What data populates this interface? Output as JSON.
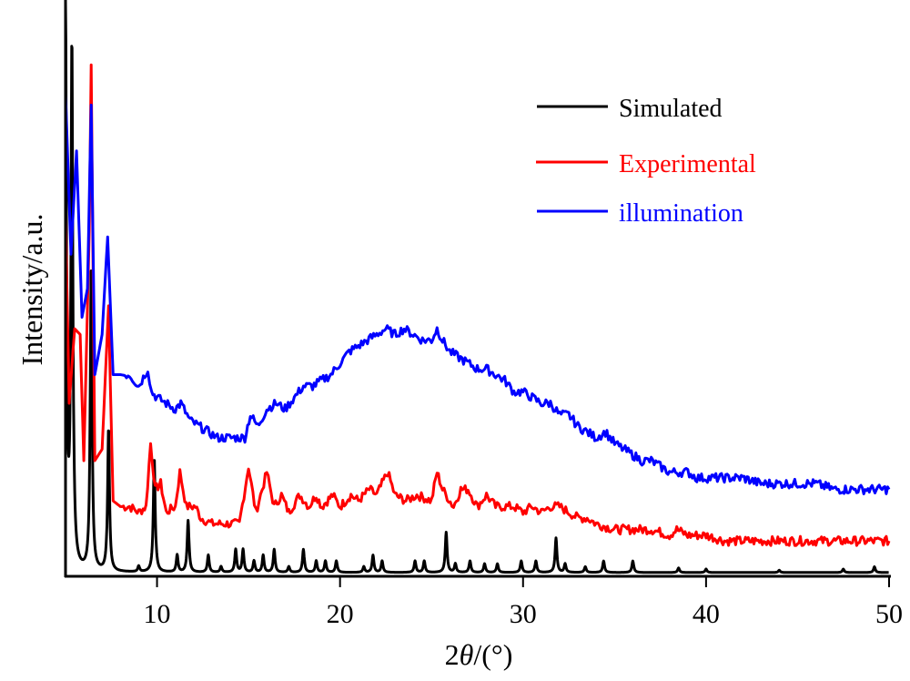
{
  "chart_data": {
    "type": "line",
    "title": "",
    "xlabel_prefix": "2",
    "xlabel_theta": "θ",
    "xlabel_suffix": "/(°)",
    "ylabel": "Intensity/a.u.",
    "xlim": [
      5,
      50
    ],
    "ylim": [
      0,
      100
    ],
    "xticks": [
      10,
      20,
      30,
      40,
      50
    ],
    "xtick_labels": [
      "10",
      "20",
      "30",
      "40",
      "50"
    ],
    "grid": false,
    "legend_position": "top-right",
    "series": [
      {
        "name": "Simulated",
        "color": "#000000",
        "baseline": 0.5,
        "peaks": [
          [
            5.0,
            100
          ],
          [
            5.35,
            91
          ],
          [
            6.4,
            52
          ],
          [
            7.35,
            25
          ],
          [
            9.0,
            1
          ],
          [
            9.85,
            20
          ],
          [
            11.1,
            3
          ],
          [
            11.7,
            9
          ],
          [
            12.8,
            3
          ],
          [
            13.5,
            1
          ],
          [
            14.3,
            4
          ],
          [
            14.7,
            4
          ],
          [
            15.3,
            2
          ],
          [
            15.8,
            3
          ],
          [
            16.4,
            4
          ],
          [
            17.2,
            1
          ],
          [
            18.0,
            4
          ],
          [
            18.7,
            2
          ],
          [
            19.2,
            2
          ],
          [
            19.8,
            2
          ],
          [
            21.3,
            1
          ],
          [
            21.8,
            3
          ],
          [
            22.3,
            2
          ],
          [
            24.1,
            2
          ],
          [
            24.6,
            2
          ],
          [
            25.8,
            7
          ],
          [
            26.3,
            1.5
          ],
          [
            27.1,
            2
          ],
          [
            27.9,
            1.5
          ],
          [
            28.6,
            1.5
          ],
          [
            29.9,
            2
          ],
          [
            30.7,
            2
          ],
          [
            31.8,
            6
          ],
          [
            32.3,
            1.5
          ],
          [
            33.4,
            1
          ],
          [
            34.4,
            2
          ],
          [
            36.0,
            2
          ],
          [
            38.5,
            0.8
          ],
          [
            40.0,
            0.6
          ],
          [
            44.0,
            0.4
          ],
          [
            47.5,
            0.6
          ],
          [
            49.2,
            1
          ]
        ]
      },
      {
        "name": "Experimental",
        "color": "#ff0000",
        "points": [
          [
            5.0,
            63
          ],
          [
            5.2,
            30
          ],
          [
            5.5,
            43
          ],
          [
            5.8,
            42
          ],
          [
            6.0,
            20
          ],
          [
            6.3,
            60
          ],
          [
            6.4,
            89
          ],
          [
            6.6,
            20
          ],
          [
            7.0,
            22
          ],
          [
            7.35,
            47
          ],
          [
            7.6,
            13
          ],
          [
            8.0,
            12
          ],
          [
            8.5,
            12
          ],
          [
            9.0,
            11
          ],
          [
            9.4,
            12
          ],
          [
            9.65,
            23
          ],
          [
            9.9,
            15
          ],
          [
            10.2,
            16
          ],
          [
            10.5,
            11
          ],
          [
            11.0,
            12
          ],
          [
            11.25,
            18
          ],
          [
            11.6,
            12
          ],
          [
            12.1,
            12
          ],
          [
            12.4,
            10
          ],
          [
            13.0,
            9
          ],
          [
            13.5,
            9
          ],
          [
            14.0,
            9
          ],
          [
            14.5,
            9
          ],
          [
            15.0,
            19
          ],
          [
            15.4,
            11
          ],
          [
            16.0,
            18
          ],
          [
            16.4,
            12
          ],
          [
            16.8,
            14
          ],
          [
            17.2,
            11
          ],
          [
            17.8,
            14
          ],
          [
            18.3,
            12
          ],
          [
            18.7,
            14
          ],
          [
            19.0,
            12
          ],
          [
            19.6,
            14
          ],
          [
            20.0,
            12
          ],
          [
            20.6,
            14
          ],
          [
            21.0,
            13
          ],
          [
            21.6,
            15
          ],
          [
            22.0,
            14
          ],
          [
            22.6,
            18
          ],
          [
            23.0,
            14
          ],
          [
            23.6,
            13
          ],
          [
            24.2,
            14
          ],
          [
            25.0,
            13
          ],
          [
            25.3,
            18
          ],
          [
            25.6,
            15
          ],
          [
            26.2,
            12
          ],
          [
            26.6,
            15
          ],
          [
            27.0,
            15
          ],
          [
            27.5,
            12
          ],
          [
            28.0,
            14
          ],
          [
            28.5,
            12
          ],
          [
            29.0,
            12
          ],
          [
            29.5,
            12
          ],
          [
            30.0,
            11
          ],
          [
            30.5,
            12
          ],
          [
            31.0,
            11
          ],
          [
            31.5,
            12
          ],
          [
            32.0,
            12
          ],
          [
            32.5,
            11
          ],
          [
            33.0,
            10
          ],
          [
            33.5,
            10
          ],
          [
            34.0,
            9
          ],
          [
            35.0,
            8
          ],
          [
            36.0,
            8
          ],
          [
            37.0,
            8
          ],
          [
            38.0,
            7
          ],
          [
            38.4,
            8
          ],
          [
            39.0,
            7
          ],
          [
            40.0,
            7
          ],
          [
            41.0,
            6
          ],
          [
            42.0,
            6
          ],
          [
            43.0,
            6
          ],
          [
            44.0,
            6
          ],
          [
            45.0,
            6
          ],
          [
            46.0,
            6
          ],
          [
            47.0,
            6
          ],
          [
            48.0,
            6
          ],
          [
            49.0,
            6
          ],
          [
            50.0,
            6
          ]
        ]
      },
      {
        "name": "illumination",
        "color": "#0000ff",
        "points": [
          [
            5.0,
            84
          ],
          [
            5.3,
            56
          ],
          [
            5.6,
            74
          ],
          [
            5.9,
            45
          ],
          [
            6.2,
            50
          ],
          [
            6.4,
            82
          ],
          [
            6.6,
            35
          ],
          [
            7.0,
            42
          ],
          [
            7.3,
            59
          ],
          [
            7.6,
            35
          ],
          [
            8.0,
            35
          ],
          [
            8.5,
            35
          ],
          [
            9.0,
            33
          ],
          [
            9.5,
            36
          ],
          [
            9.7,
            32
          ],
          [
            10.0,
            31
          ],
          [
            10.5,
            30
          ],
          [
            11.0,
            29
          ],
          [
            11.3,
            30
          ],
          [
            11.8,
            27
          ],
          [
            12.3,
            26
          ],
          [
            12.8,
            25
          ],
          [
            13.3,
            24
          ],
          [
            13.8,
            24
          ],
          [
            14.3,
            24
          ],
          [
            14.8,
            24
          ],
          [
            15.1,
            28
          ],
          [
            15.5,
            26
          ],
          [
            16.0,
            29
          ],
          [
            16.5,
            30
          ],
          [
            17.0,
            29
          ],
          [
            17.5,
            31
          ],
          [
            18.0,
            33
          ],
          [
            18.5,
            33
          ],
          [
            19.0,
            34
          ],
          [
            19.5,
            35
          ],
          [
            20.0,
            37
          ],
          [
            20.5,
            39
          ],
          [
            21.0,
            40
          ],
          [
            21.5,
            41
          ],
          [
            22.0,
            42
          ],
          [
            22.5,
            43
          ],
          [
            23.0,
            42
          ],
          [
            23.5,
            43
          ],
          [
            24.0,
            42
          ],
          [
            24.5,
            41
          ],
          [
            25.0,
            41
          ],
          [
            25.3,
            43
          ],
          [
            25.6,
            41
          ],
          [
            26.0,
            39
          ],
          [
            26.5,
            38
          ],
          [
            27.0,
            37
          ],
          [
            27.5,
            36
          ],
          [
            28.0,
            36
          ],
          [
            28.5,
            35
          ],
          [
            29.0,
            34
          ],
          [
            29.5,
            32
          ],
          [
            30.0,
            32
          ],
          [
            30.5,
            31
          ],
          [
            31.0,
            30
          ],
          [
            31.5,
            30
          ],
          [
            32.0,
            28
          ],
          [
            32.5,
            28
          ],
          [
            33.0,
            26
          ],
          [
            33.5,
            25
          ],
          [
            34.0,
            24
          ],
          [
            34.5,
            25
          ],
          [
            35.0,
            23
          ],
          [
            35.5,
            22
          ],
          [
            36.0,
            21
          ],
          [
            36.5,
            20
          ],
          [
            37.0,
            20
          ],
          [
            37.5,
            19
          ],
          [
            38.0,
            18
          ],
          [
            38.5,
            18
          ],
          [
            39.0,
            18
          ],
          [
            39.5,
            17
          ],
          [
            40.0,
            17
          ],
          [
            41.0,
            17
          ],
          [
            42.0,
            17
          ],
          [
            43.0,
            16
          ],
          [
            44.0,
            16
          ],
          [
            45.0,
            16
          ],
          [
            46.0,
            16
          ],
          [
            47.0,
            15
          ],
          [
            48.0,
            15
          ],
          [
            49.0,
            15
          ],
          [
            50.0,
            15
          ]
        ]
      }
    ]
  }
}
